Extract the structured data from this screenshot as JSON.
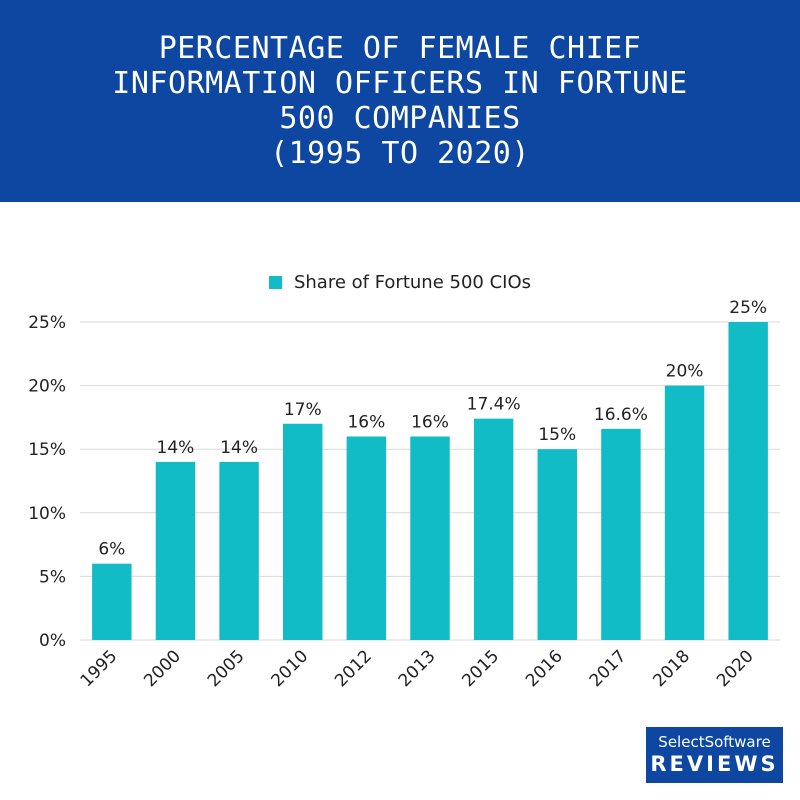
{
  "header": {
    "title_lines": [
      "PERCENTAGE OF FEMALE CHIEF",
      "INFORMATION OFFICERS IN FORTUNE",
      "500 COMPANIES",
      "(1995 TO 2020)"
    ]
  },
  "colors": {
    "header_bg": "#0d47a1",
    "bar": "#12bcc6",
    "grid": "#d9d9d9",
    "text": "#222222"
  },
  "brand": {
    "line1": "SelectSoftware",
    "line2": "REVIEWS"
  },
  "chart_data": {
    "type": "bar",
    "title": "Percentage of Female Chief Information Officers in Fortune 500 Companies (1995 to 2020)",
    "categories": [
      "1995",
      "2000",
      "2005",
      "2010",
      "2012",
      "2013",
      "2015",
      "2016",
      "2017",
      "2018",
      "2020"
    ],
    "series": [
      {
        "name": "Share of Fortune 500 CIOs",
        "values": [
          6,
          14,
          14,
          17,
          16,
          16,
          17.4,
          15,
          16.6,
          20,
          25
        ],
        "labels": [
          "6%",
          "14%",
          "14%",
          "17%",
          "16%",
          "16%",
          "17.4%",
          "15%",
          "16.6%",
          "20%",
          "25%"
        ]
      }
    ],
    "y_ticks": [
      0,
      5,
      10,
      15,
      20,
      25
    ],
    "y_tick_labels": [
      "0%",
      "5%",
      "10%",
      "15%",
      "20%",
      "25%"
    ],
    "ylim": [
      0,
      25
    ],
    "xlabel": "",
    "ylabel": "",
    "grid": true,
    "legend_position": "top-center"
  }
}
